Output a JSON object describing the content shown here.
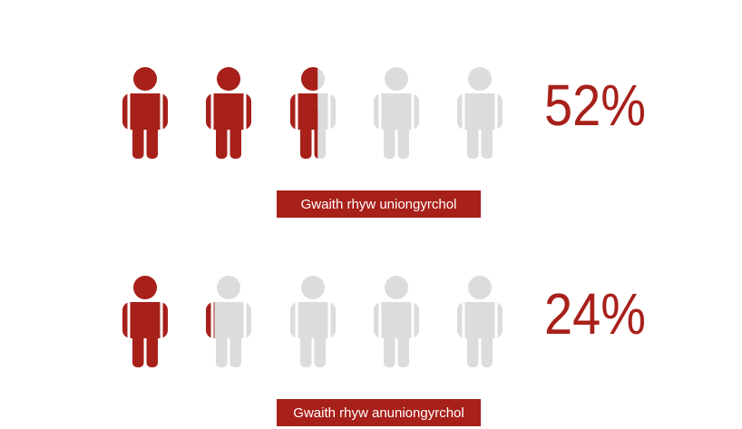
{
  "chart_data": {
    "type": "pictograph",
    "categories": [
      "Gwaith rhyw uniongyrchol",
      "Gwaith rhyw anuniongyrchol"
    ],
    "values": [
      52,
      24
    ],
    "value_labels": [
      "52%",
      "24%"
    ],
    "xlim": [
      0,
      100
    ],
    "color": "#a8201a",
    "empty_color": "#dcdcdc"
  }
}
